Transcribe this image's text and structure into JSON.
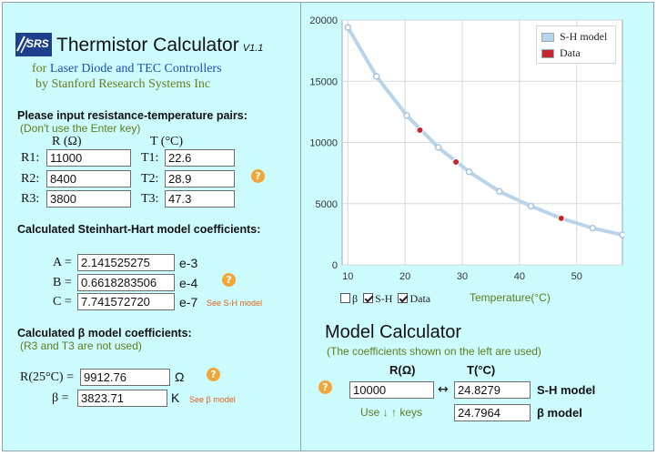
{
  "app": {
    "title": "Thermistor Calculator",
    "version": "V1.1",
    "logo_text": "SRS",
    "subtitle_prefix": "for",
    "subtitle_link": "Laser Diode and TEC Controllers",
    "byline": "by Stanford Research Systems Inc"
  },
  "pairs": {
    "heading": "Please input resistance-temperature pairs:",
    "note": "(Don't use the Enter key)",
    "r_header": "R (Ω)",
    "t_header": "T (°C)",
    "rows": [
      {
        "r_label": "R1:",
        "r_value": "11000",
        "t_label": "T1:",
        "t_value": "22.6"
      },
      {
        "r_label": "R2:",
        "r_value": "8400",
        "t_label": "T2:",
        "t_value": "28.9"
      },
      {
        "r_label": "R3:",
        "r_value": "3800",
        "t_label": "T3:",
        "t_value": "47.3"
      }
    ],
    "help": "?"
  },
  "sh": {
    "heading": "Calculated Steinhart-Hart model coefficients:",
    "rows": [
      {
        "label": "A =",
        "value": "2.141525275",
        "exp": "e-3"
      },
      {
        "label": "B =",
        "value": "0.6618283506",
        "exp": "e-4"
      },
      {
        "label": "C =",
        "value": "7.741572720",
        "exp": "e-7"
      }
    ],
    "see_link": "See S-H model",
    "help": "?"
  },
  "beta": {
    "heading": "Calculated β model coefficients:",
    "note": "(R3 and T3 are not used)",
    "r25_label": "R(25°C) =",
    "r25_value": "9912.76",
    "r25_unit": "Ω",
    "beta_label": "β =",
    "beta_value": "3823.71",
    "beta_unit": "K",
    "see_link": "See β model",
    "help": "?"
  },
  "chart_data": {
    "type": "line",
    "xlim": [
      9,
      58
    ],
    "ylim": [
      0,
      20000
    ],
    "xticks": [
      "10",
      "20",
      "30",
      "40",
      "50"
    ],
    "yticks": [
      "0",
      "5000",
      "10000",
      "15000",
      "20000"
    ],
    "grid": true,
    "legend_position": "top-right",
    "series": [
      {
        "name": "S-H model",
        "color": "#b8d4ea",
        "x": [
          10,
          15,
          20.3,
          25.8,
          31.2,
          36.5,
          42,
          47.3,
          52.8,
          58
        ],
        "y": [
          19400,
          15400,
          12200,
          9600,
          7600,
          6000,
          4800,
          3800,
          3000,
          2450
        ]
      },
      {
        "name": "Data",
        "color": "#c1272d",
        "x": [
          22.6,
          28.9,
          47.3
        ],
        "y": [
          11000,
          8400,
          3800
        ]
      }
    ],
    "xlabel": "Temperature(°C)"
  },
  "chart_controls": {
    "beta_label": "β",
    "beta_checked": false,
    "sh_label": "S-H",
    "sh_checked": true,
    "data_label": "Data",
    "data_checked": true,
    "xlabel": "Temperature(°C)"
  },
  "model_calc": {
    "title": "Model Calculator",
    "note": "(The coefficients shown on the left are used)",
    "r_header": "R(Ω)",
    "t_header": "T(°C)",
    "r_value": "10000",
    "arrow": "↔",
    "sh_value": "24.8279",
    "sh_label": "S-H model",
    "beta_value": "24.7964",
    "beta_label": "β model",
    "keys_hint": "Use ↓ ↑ keys",
    "help": "?"
  }
}
